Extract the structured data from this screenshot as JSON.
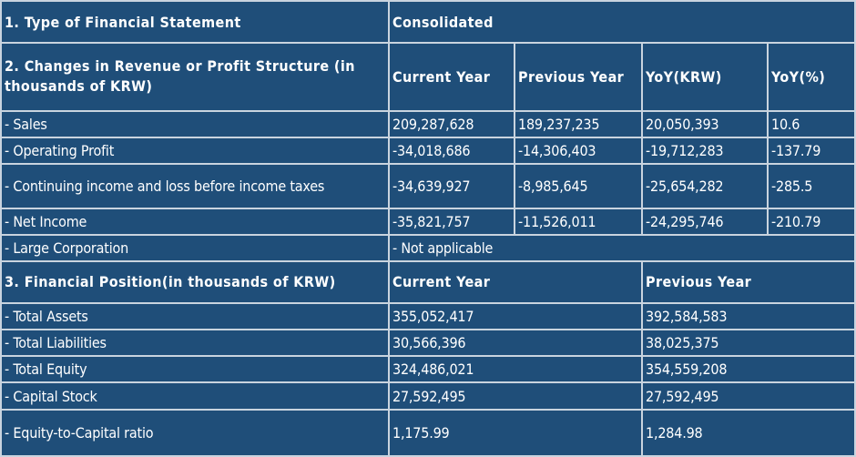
{
  "section1": {
    "label": "1. Type of Financial Statement",
    "value": "Consolidated"
  },
  "section2": {
    "header": "2. Changes in Revenue or Profit Structure (in thousands of KRW)",
    "columns": [
      "Current Year",
      "Previous Year",
      "YoY(KRW)",
      "YoY(%)"
    ],
    "rows": [
      {
        "label": "- Sales",
        "values": [
          "209,287,628",
          "189,237,235",
          "20,050,393",
          "10.6"
        ]
      },
      {
        "label": "- Operating Profit",
        "values": [
          "-34,018,686",
          "-14,306,403",
          "-19,712,283",
          "-137.79"
        ]
      },
      {
        "label": "- Continuing income and loss before income taxes",
        "values": [
          "-34,639,927",
          "-8,985,645",
          "-25,654,282",
          "-285.5"
        ]
      },
      {
        "label": "- Net Income",
        "values": [
          "-35,821,757",
          "-11,526,011",
          "-24,295,746",
          "-210.79"
        ]
      }
    ],
    "large_corp": {
      "label": "- Large Corporation",
      "value": "- Not applicable"
    }
  },
  "section3": {
    "header": "3. Financial Position(in thousands of KRW)",
    "columns": [
      "Current Year",
      "Previous Year"
    ],
    "rows": [
      {
        "label": "- Total Assets",
        "values": [
          "355,052,417",
          "392,584,583"
        ]
      },
      {
        "label": "- Total Liabilities",
        "values": [
          "30,566,396",
          "38,025,375"
        ]
      },
      {
        "label": "- Total Equity",
        "values": [
          "324,486,021",
          "354,559,208"
        ]
      },
      {
        "label": "- Capital Stock",
        "values": [
          "27,592,495",
          "27,592,495"
        ]
      },
      {
        "label": "- Equity-to-Capital ratio",
        "values": [
          "1,175.99",
          "1,284.98"
        ]
      }
    ]
  }
}
